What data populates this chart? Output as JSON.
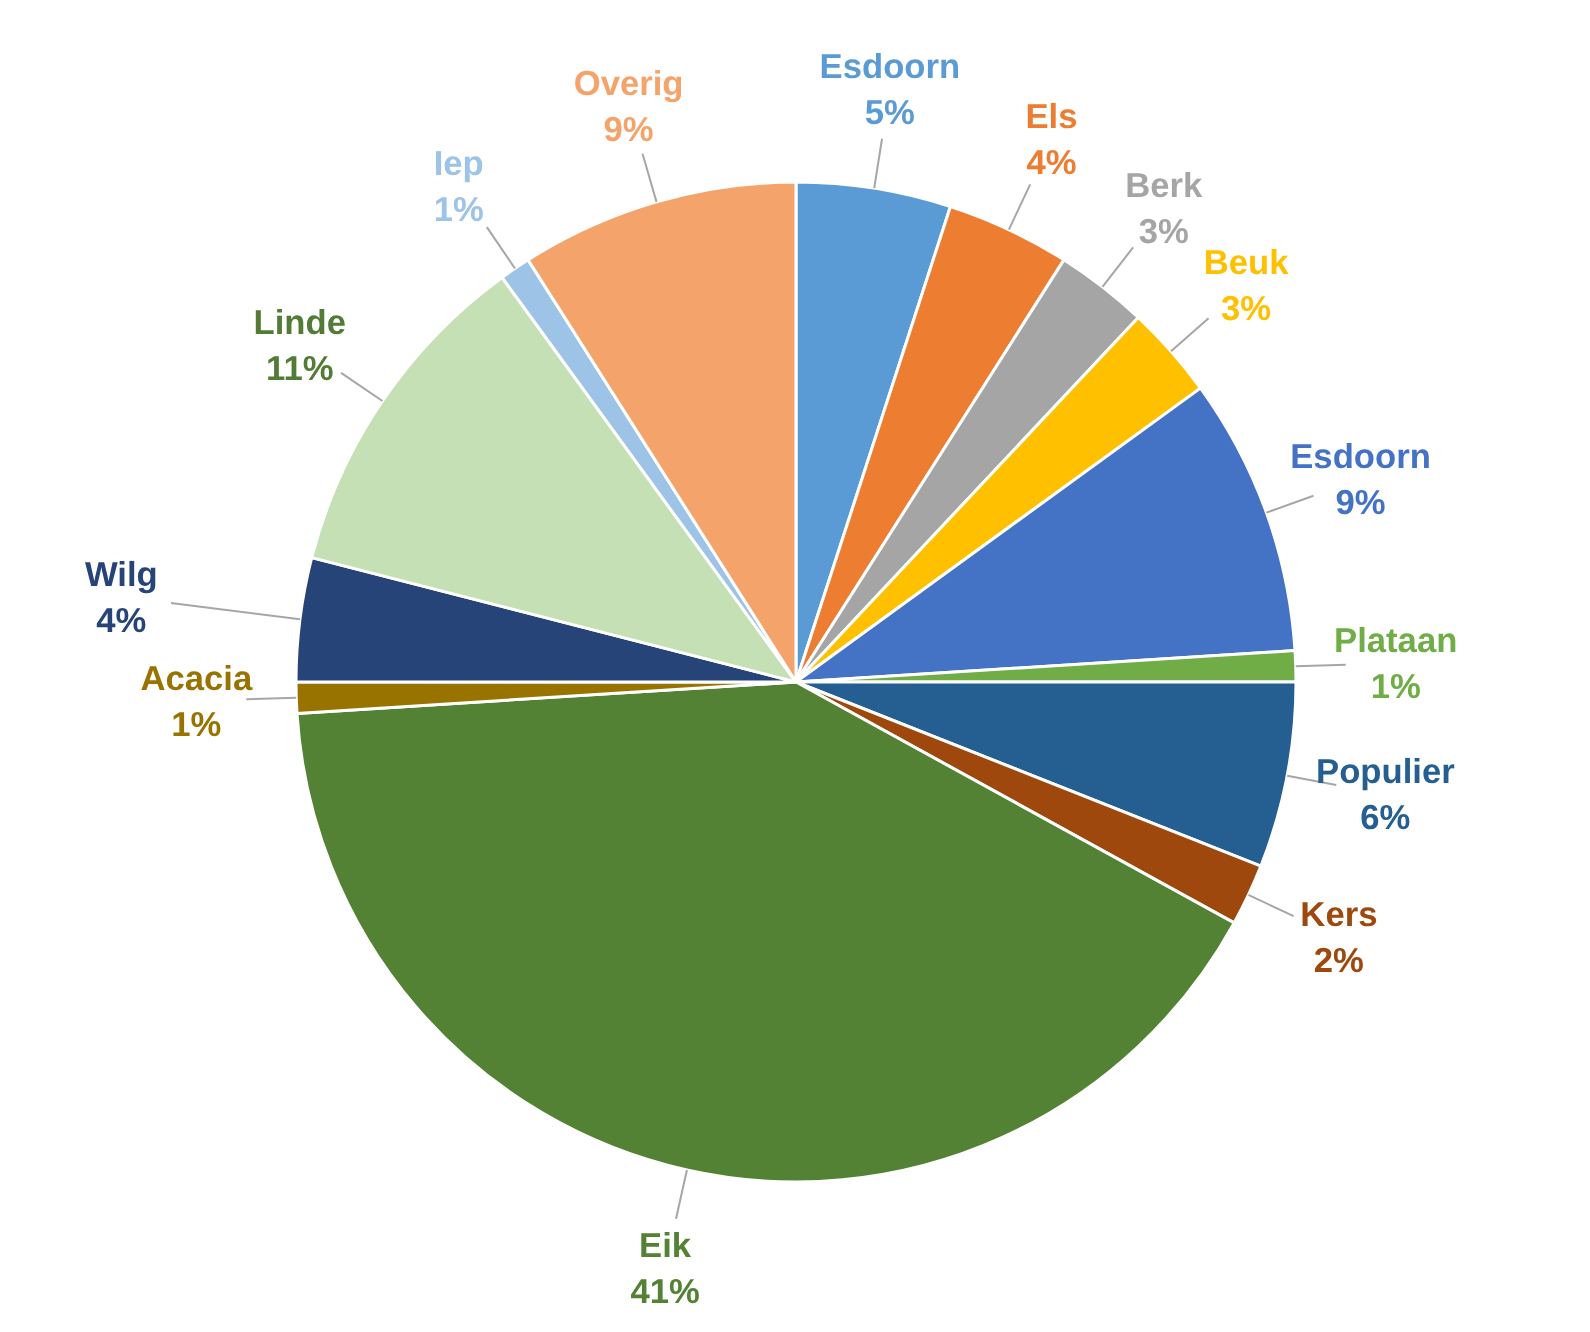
{
  "chart_data": {
    "type": "pie",
    "categories": [
      "Esdoorn",
      "Els",
      "Berk",
      "Beuk",
      "Esdoorn",
      "Plataan",
      "Populier",
      "Kers",
      "Eik",
      "Acacia",
      "Wilg",
      "Linde",
      "Iep",
      "Overig"
    ],
    "values": [
      5,
      4,
      3,
      3,
      9,
      1,
      6,
      2,
      41,
      1,
      4,
      11,
      1,
      9
    ],
    "value_labels": [
      "5%",
      "4%",
      "3%",
      "3%",
      "9%",
      "1%",
      "6%",
      "2%",
      "41%",
      "1%",
      "4%",
      "11%",
      "1%",
      "9%"
    ],
    "colors": [
      "#5b9bd5",
      "#ed7d31",
      "#a5a5a5",
      "#ffc000",
      "#4472c4",
      "#70ad47",
      "#255e91",
      "#9e480e",
      "#548235",
      "#997300",
      "#264478",
      "#c5e0b4",
      "#9dc3e6",
      "#f4a46a"
    ]
  }
}
